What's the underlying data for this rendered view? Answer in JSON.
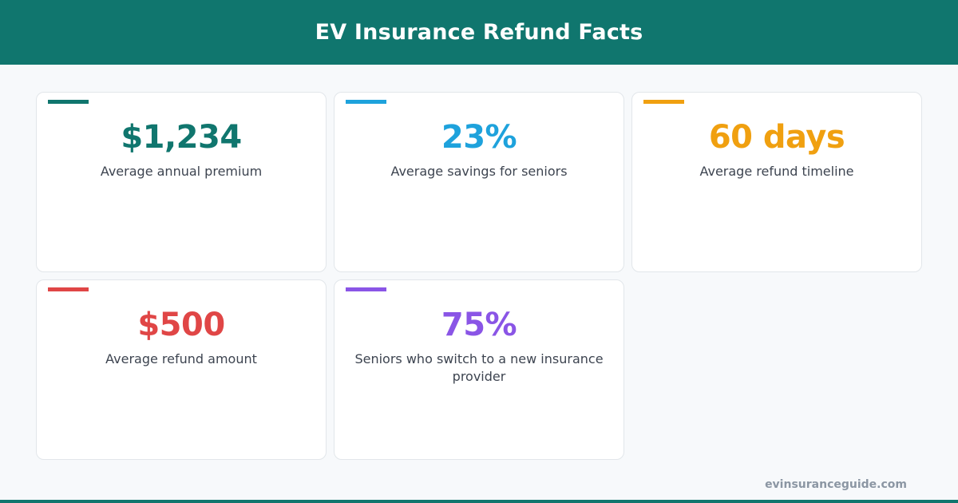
{
  "header": {
    "title": "EV Insurance Refund Facts",
    "background": "#10766e"
  },
  "cards": [
    {
      "value": "$1,234",
      "label": "Average annual premium",
      "color": "#10766e"
    },
    {
      "value": "23%",
      "label": "Average savings for seniors",
      "color": "#1ea2dc"
    },
    {
      "value": "60 days",
      "label": "Average refund timeline",
      "color": "#f0a010"
    },
    {
      "value": "$500",
      "label": "Average refund amount",
      "color": "#e04646"
    },
    {
      "value": "75%",
      "label": "Seniors who switch to a new insurance provider",
      "color": "#8a55e6"
    }
  ],
  "footer": {
    "site": "evinsuranceguide.com"
  }
}
